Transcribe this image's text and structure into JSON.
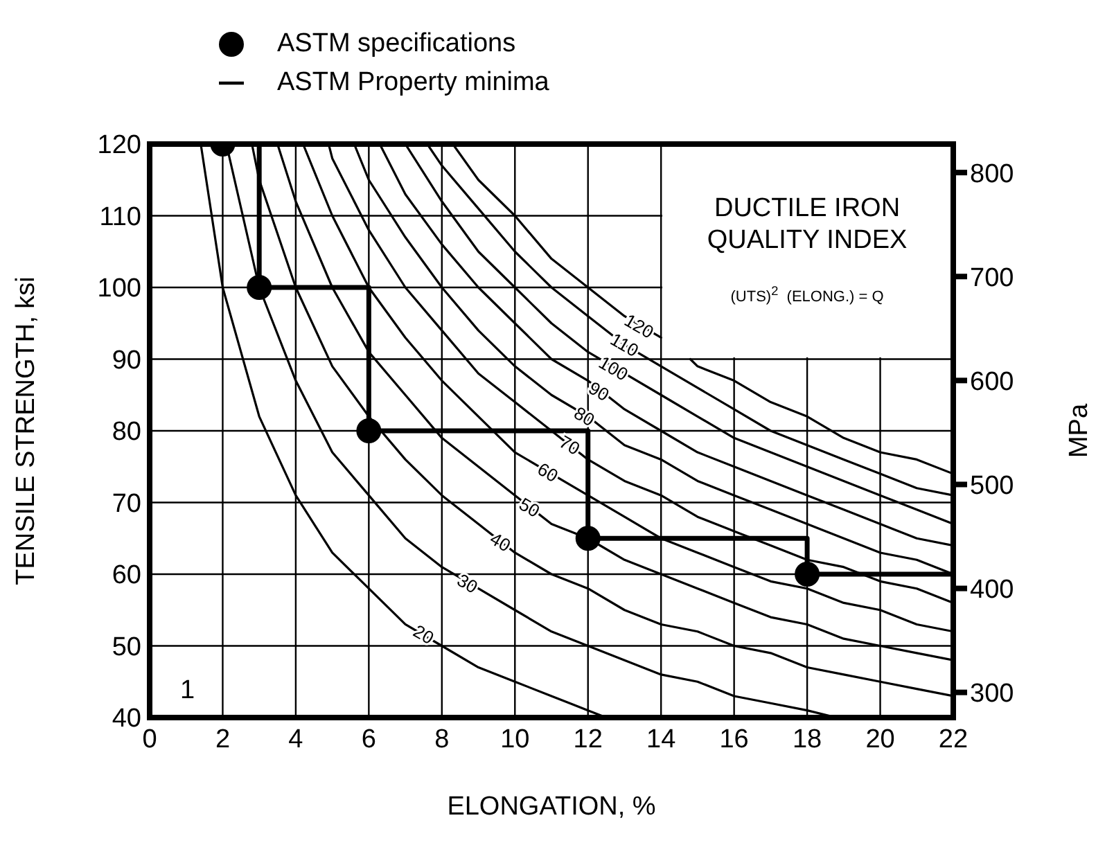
{
  "chart_data": {
    "type": "line",
    "xlabel": "ELONGATION, %",
    "ylabel": "TENSILE STRENGTH, ksi",
    "y2label": "MPa",
    "xlim": [
      0,
      22
    ],
    "xticks": [
      0,
      2,
      4,
      6,
      8,
      10,
      12,
      14,
      16,
      18,
      20,
      22
    ],
    "ylim": [
      40,
      120
    ],
    "yticks": [
      40,
      50,
      60,
      70,
      80,
      90,
      100,
      110,
      120
    ],
    "y2lim": [
      275.8,
      827.4
    ],
    "y2ticks": [
      300,
      400,
      500,
      600,
      700,
      800
    ],
    "grid": true,
    "legend": "top",
    "marker": "none",
    "series": [
      {
        "type": "scatter",
        "name": "ASTM specifications",
        "color": "#000000",
        "marker": "circle",
        "x": [
          2,
          3,
          6,
          12,
          18
        ],
        "values": [
          120,
          100,
          80,
          65,
          60
        ]
      },
      {
        "name": "ASTM Property minima",
        "color": "#000000",
        "x": [
          3,
          3,
          6,
          6,
          12,
          12,
          18,
          18,
          22
        ],
        "values": [
          120,
          100,
          100,
          80,
          80,
          65,
          65,
          60,
          60
        ]
      },
      {
        "color": "#000000",
        "x": [
          1.4,
          2,
          3,
          4,
          5,
          6,
          7,
          8,
          9,
          10,
          11,
          12,
          12.5
        ],
        "values": [
          120,
          100,
          82,
          71,
          63,
          58,
          53,
          50,
          47,
          45,
          43,
          41,
          40
        ]
      },
      {
        "color": "#000000",
        "x": [
          2.1,
          3,
          4,
          5,
          6,
          7,
          8,
          9,
          10,
          11,
          12,
          13,
          14,
          15,
          16,
          17,
          18,
          18.8
        ],
        "values": [
          120,
          100,
          87,
          77,
          71,
          65,
          61,
          58,
          55,
          52,
          50,
          48,
          46,
          45,
          43,
          42,
          41,
          40
        ]
      },
      {
        "color": "#000000",
        "x": [
          2.8,
          3,
          4,
          5,
          6,
          7,
          8,
          9,
          10,
          11,
          12,
          13,
          14,
          15,
          16,
          17,
          18,
          19,
          20,
          21,
          22
        ],
        "values": [
          120,
          115,
          100,
          89,
          82,
          76,
          71,
          67,
          63,
          60,
          58,
          55,
          53,
          52,
          50,
          49,
          47,
          46,
          45,
          44,
          43
        ]
      },
      {
        "color": "#000000",
        "x": [
          3.5,
          4,
          5,
          6,
          7,
          8,
          9,
          10,
          11,
          12,
          13,
          14,
          15,
          16,
          17,
          18,
          19,
          20,
          21,
          22
        ],
        "values": [
          120,
          112,
          100,
          91,
          85,
          79,
          75,
          71,
          67,
          65,
          62,
          60,
          58,
          56,
          54,
          53,
          51,
          50,
          49,
          48
        ]
      },
      {
        "color": "#000000",
        "x": [
          4.2,
          5,
          6,
          7,
          8,
          9,
          10,
          11,
          12,
          13,
          14,
          15,
          16,
          17,
          18,
          19,
          20,
          21,
          22
        ],
        "values": [
          120,
          110,
          100,
          93,
          87,
          82,
          77,
          74,
          71,
          68,
          65,
          63,
          61,
          59,
          58,
          56,
          55,
          53,
          52
        ]
      },
      {
        "color": "#000000",
        "x": [
          4.9,
          5,
          6,
          7,
          8,
          9,
          10,
          11,
          12,
          13,
          14,
          15,
          16,
          17,
          18,
          19,
          20,
          21,
          22
        ],
        "values": [
          120,
          118,
          108,
          100,
          94,
          88,
          84,
          80,
          76,
          73,
          71,
          68,
          66,
          64,
          62,
          61,
          59,
          58,
          56
        ]
      },
      {
        "color": "#000000",
        "x": [
          5.6,
          6,
          7,
          8,
          9,
          10,
          11,
          12,
          13,
          14,
          15,
          16,
          17,
          18,
          19,
          20,
          21,
          22
        ],
        "values": [
          120,
          115,
          107,
          100,
          94,
          89,
          85,
          82,
          78,
          76,
          73,
          71,
          69,
          67,
          65,
          63,
          62,
          60
        ]
      },
      {
        "color": "#000000",
        "x": [
          6.3,
          7,
          8,
          9,
          10,
          11,
          12,
          13,
          14,
          15,
          16,
          17,
          18,
          19,
          20,
          21,
          22
        ],
        "values": [
          120,
          113,
          106,
          100,
          95,
          90,
          87,
          83,
          80,
          77,
          75,
          73,
          71,
          69,
          67,
          65,
          64
        ]
      },
      {
        "color": "#000000",
        "x": [
          7,
          8,
          9,
          10,
          11,
          12,
          13,
          14,
          15,
          16,
          17,
          18,
          19,
          20,
          21,
          22
        ],
        "values": [
          120,
          112,
          105,
          100,
          95,
          91,
          88,
          85,
          82,
          79,
          77,
          75,
          73,
          71,
          69,
          67
        ]
      },
      {
        "color": "#000000",
        "x": [
          7.6,
          8,
          9,
          10,
          11,
          12,
          13,
          14,
          15,
          16,
          17,
          18,
          19,
          20,
          21,
          22
        ],
        "values": [
          120,
          117,
          111,
          105,
          100,
          96,
          92,
          89,
          86,
          83,
          80,
          78,
          76,
          74,
          72,
          71
        ]
      },
      {
        "color": "#000000",
        "x": [
          8.3,
          9,
          10,
          11,
          12,
          13,
          14,
          14.4,
          14.8,
          15,
          16,
          17,
          18,
          19,
          20,
          21,
          22
        ],
        "values": [
          120,
          115,
          110,
          104,
          100,
          96,
          93,
          null,
          90,
          89,
          87,
          84,
          82,
          79,
          77,
          76,
          74
        ]
      }
    ],
    "annotations": [
      {
        "text": "20",
        "x": 7.5,
        "y": 51.6
      },
      {
        "text": "30",
        "x": 8.7,
        "y": 58.7
      },
      {
        "text": "40",
        "x": 9.6,
        "y": 64.5
      },
      {
        "text": "50",
        "x": 10.4,
        "y": 69.3
      },
      {
        "text": "60",
        "x": 10.9,
        "y": 74.2
      },
      {
        "text": "70",
        "x": 11.5,
        "y": 78
      },
      {
        "text": "80",
        "x": 11.9,
        "y": 82
      },
      {
        "text": "90",
        "x": 12.3,
        "y": 85.5
      },
      {
        "text": "100",
        "x": 12.7,
        "y": 88.7
      },
      {
        "text": "110",
        "x": 13,
        "y": 92
      },
      {
        "text": "120",
        "x": 13.4,
        "y": 94.6
      },
      "DUCTILE IRON QUALITY INDEX",
      "(UTS)$^{2}$  (ELONG.) = Q",
      "1"
    ]
  }
}
